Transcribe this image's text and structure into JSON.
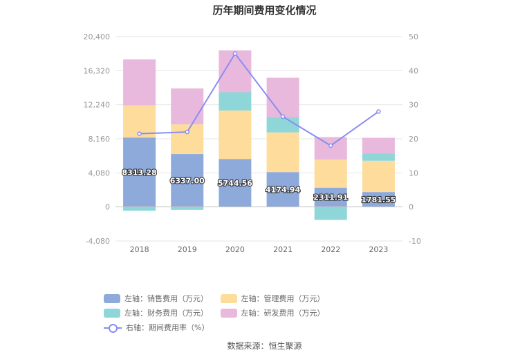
{
  "source": "数据来源：恒生聚源",
  "chart_data": {
    "type": "bar",
    "title": "历年期间费用变化情况",
    "categories": [
      "2018",
      "2019",
      "2020",
      "2021",
      "2022",
      "2023"
    ],
    "y_left": {
      "ticks": [
        -4080,
        0,
        4080,
        8160,
        12240,
        16320,
        20400
      ],
      "tick_labels": [
        "-4,080",
        "0",
        "4,080",
        "8,160",
        "12,240",
        "16,320",
        "20,400"
      ],
      "range": [
        -4080,
        20400
      ]
    },
    "y_right": {
      "ticks": [
        -10,
        0,
        10,
        20,
        30,
        40,
        50
      ],
      "tick_labels": [
        "-10",
        "0",
        "10",
        "20",
        "30",
        "40",
        "50"
      ],
      "range": [
        -10,
        50
      ]
    },
    "series": [
      {
        "name": "左轴：销售费用（万元）",
        "kind": "bar",
        "axis": "left",
        "color": "#8eaadb",
        "values": [
          8313.28,
          6337.0,
          5744.56,
          4174.94,
          2311.91,
          1781.55
        ],
        "labels": [
          "8313.28",
          "6337.00",
          "5744.56",
          "4174.94",
          "2311.91",
          "1781.55"
        ]
      },
      {
        "name": "左轴：管理费用（万元）",
        "kind": "bar",
        "axis": "left",
        "color": "#fddc9c",
        "values": [
          3850,
          3550,
          5800,
          4750,
          3350,
          3750
        ]
      },
      {
        "name": "左轴：财务费用（万元）",
        "kind": "bar",
        "axis": "left",
        "color": "#8ed6d8",
        "values": [
          -450,
          -350,
          2200,
          1800,
          -1550,
          850
        ]
      },
      {
        "name": "左轴：研发费用（万元）",
        "kind": "bar",
        "axis": "left",
        "color": "#e8b9dc",
        "values": [
          5500,
          4300,
          5000,
          4750,
          2700,
          1900
        ]
      },
      {
        "name": "右轴：期间费用率（%）",
        "kind": "line",
        "axis": "right",
        "color": "#8a8df2",
        "values": [
          21.5,
          22.0,
          45.0,
          26.5,
          18.0,
          28.0
        ]
      }
    ],
    "grid": true,
    "legend_position": "bottom"
  }
}
